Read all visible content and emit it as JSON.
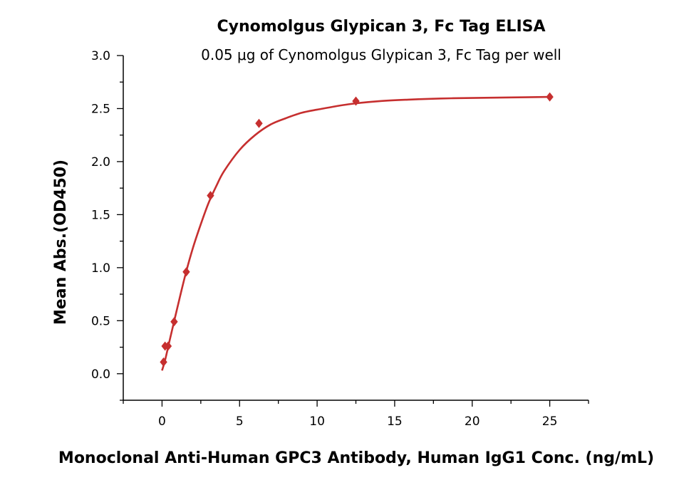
{
  "chart_data": {
    "type": "scatter",
    "title": "Cynomolgus Glypican 3, Fc Tag ELISA",
    "subtitle": "0.05 μg of Cynomolgus Glypican 3, Fc Tag per well",
    "xlabel": "Monoclonal Anti-Human GPC3 Antibody, Human IgG1 Conc. (ng/mL)",
    "ylabel": "Mean Abs.(OD450)",
    "xlim": [
      -2.5,
      27.5
    ],
    "ylim": [
      -0.25,
      3.0
    ],
    "x_ticks": [
      0,
      5,
      10,
      15,
      20,
      25
    ],
    "y_ticks": [
      0.0,
      0.5,
      1.0,
      1.5,
      2.0,
      2.5,
      3.0
    ],
    "x_tick_labels": [
      "0",
      "5",
      "10",
      "15",
      "20",
      "25"
    ],
    "y_tick_labels": [
      "0.0",
      "0.5",
      "1.0",
      "1.5",
      "2.0",
      "2.5",
      "3.0"
    ],
    "grid": false,
    "series": [
      {
        "color": "#c62f2f",
        "marker": "diamond",
        "points": [
          {
            "x": 0.098,
            "y": 0.11
          },
          {
            "x": 0.195,
            "y": 0.26
          },
          {
            "x": 0.39,
            "y": 0.26
          },
          {
            "x": 0.781,
            "y": 0.49
          },
          {
            "x": 1.563,
            "y": 0.96
          },
          {
            "x": 3.125,
            "y": 1.68
          },
          {
            "x": 6.25,
            "y": 2.36
          },
          {
            "x": 12.5,
            "y": 2.57
          },
          {
            "x": 25.0,
            "y": 2.61
          }
        ],
        "fit_curve": [
          {
            "x": 0.0,
            "y": 0.03
          },
          {
            "x": 0.2,
            "y": 0.13
          },
          {
            "x": 0.5,
            "y": 0.32
          },
          {
            "x": 1.0,
            "y": 0.63
          },
          {
            "x": 1.5,
            "y": 0.93
          },
          {
            "x": 2.0,
            "y": 1.19
          },
          {
            "x": 2.5,
            "y": 1.41
          },
          {
            "x": 3.0,
            "y": 1.61
          },
          {
            "x": 3.5,
            "y": 1.77
          },
          {
            "x": 4.0,
            "y": 1.91
          },
          {
            "x": 5.0,
            "y": 2.11
          },
          {
            "x": 6.0,
            "y": 2.25
          },
          {
            "x": 7.0,
            "y": 2.35
          },
          {
            "x": 8.0,
            "y": 2.41
          },
          {
            "x": 9.0,
            "y": 2.46
          },
          {
            "x": 10.0,
            "y": 2.49
          },
          {
            "x": 12.0,
            "y": 2.54
          },
          {
            "x": 14.0,
            "y": 2.57
          },
          {
            "x": 16.0,
            "y": 2.585
          },
          {
            "x": 18.0,
            "y": 2.595
          },
          {
            "x": 20.0,
            "y": 2.6
          },
          {
            "x": 22.5,
            "y": 2.605
          },
          {
            "x": 25.0,
            "y": 2.61
          }
        ]
      }
    ]
  }
}
